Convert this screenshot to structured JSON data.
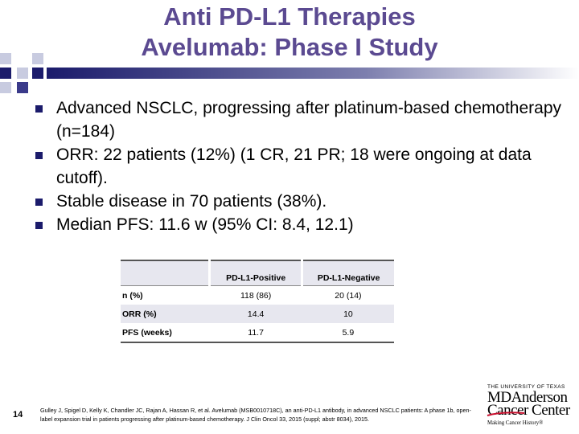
{
  "slide": {
    "title_line1": "Anti PD-L1 Therapies",
    "title_line2": "Avelumab: Phase I Study",
    "title_color": "#5b4a91",
    "bullet_color": "#1b1b6b",
    "page_number": "14"
  },
  "bullets": [
    "Advanced NSCLC, progressing after platinum-based chemotherapy (n=184)",
    "ORR: 22 patients (12%) (1 CR, 21 PR; 18 were ongoing at data cutoff).",
    "Stable disease in 70 patients (38%).",
    "Median PFS: 11.6 w (95% CI: 8.4, 12.1)"
  ],
  "table": {
    "headers": [
      "",
      "PD-L1-Positive",
      "PD-L1-Negative"
    ],
    "rows": [
      [
        "n (%)",
        "118 (86)",
        "20 (14)"
      ],
      [
        "ORR (%)",
        "14.4",
        "10"
      ],
      [
        "PFS (weeks)",
        "11.7",
        "5.9"
      ]
    ]
  },
  "citation": "Gulley J, Spigel D, Kelly K, Chandler JC, Rajan A, Hassan R, et al. Avelumab (MSB0010718C), an anti-PD-L1 antibody, in advanced NSCLC patients: A phase 1b, open-label expansion trial in patients progressing after platinum-based chemotherapy. J Clin Oncol 33, 2015 (suppl; abstr 8034), 2015.",
  "logo": {
    "university": "THE UNIVERSITY OF TEXAS",
    "line1": "MDAnderson",
    "line2": "Cancer Center",
    "tagline": "Making Cancer History®",
    "accent_color": "#c8102e"
  }
}
